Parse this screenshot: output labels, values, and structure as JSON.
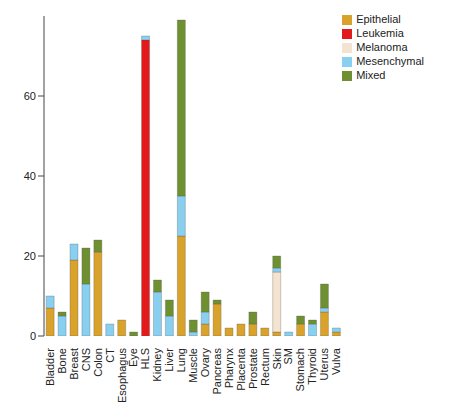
{
  "chart_data": {
    "type": "bar",
    "stacked": true,
    "legend": "top-right",
    "categories": [
      "Bladder",
      "Bone",
      "Breast",
      "CNS",
      "Colon",
      "CT",
      "Esophagus",
      "Eye",
      "HLS",
      "Kidney",
      "Liver",
      "Lung",
      "Muscle",
      "Ovary",
      "Pancreas",
      "Pharynx",
      "Placenta",
      "Prostate",
      "Rectum",
      "Skin",
      "SM",
      "Stomach",
      "Thyroid",
      "Uterus",
      "Vulva"
    ],
    "series": [
      {
        "name": "Epithelial",
        "color": "#D9A22B",
        "values": [
          7,
          0,
          19,
          0,
          21,
          0,
          4,
          0,
          0,
          0,
          0,
          25,
          0,
          3,
          8,
          2,
          3,
          3,
          2,
          1,
          0,
          3,
          0,
          6,
          1
        ]
      },
      {
        "name": "Leukemia",
        "color": "#E31A1C",
        "values": [
          0,
          0,
          0,
          0,
          0,
          0,
          0,
          0,
          74,
          0,
          0,
          0,
          0,
          0,
          0,
          0,
          0,
          0,
          0,
          0,
          0,
          0,
          0,
          0,
          0
        ]
      },
      {
        "name": "Melanoma",
        "color": "#F3E3CF",
        "values": [
          0,
          0,
          0,
          0,
          0,
          0,
          0,
          0,
          0,
          0,
          0,
          0,
          0,
          0,
          0,
          0,
          0,
          0,
          0,
          15,
          0,
          0,
          0,
          0,
          0
        ]
      },
      {
        "name": "Mesenchymal",
        "color": "#89CFEF",
        "values": [
          3,
          5,
          4,
          13,
          0,
          3,
          0,
          0,
          1,
          11,
          5,
          10,
          1,
          3,
          0,
          0,
          0,
          0,
          0,
          1,
          1,
          0,
          3,
          1,
          1
        ]
      },
      {
        "name": "Mixed",
        "color": "#6E9030",
        "values": [
          0,
          1,
          0,
          9,
          3,
          0,
          0,
          1,
          0,
          3,
          4,
          44,
          3,
          5,
          1,
          0,
          0,
          3,
          0,
          3,
          0,
          2,
          1,
          6,
          0
        ]
      }
    ],
    "ylim": [
      0,
      80
    ],
    "yticks": [
      0,
      20,
      40,
      60
    ]
  }
}
